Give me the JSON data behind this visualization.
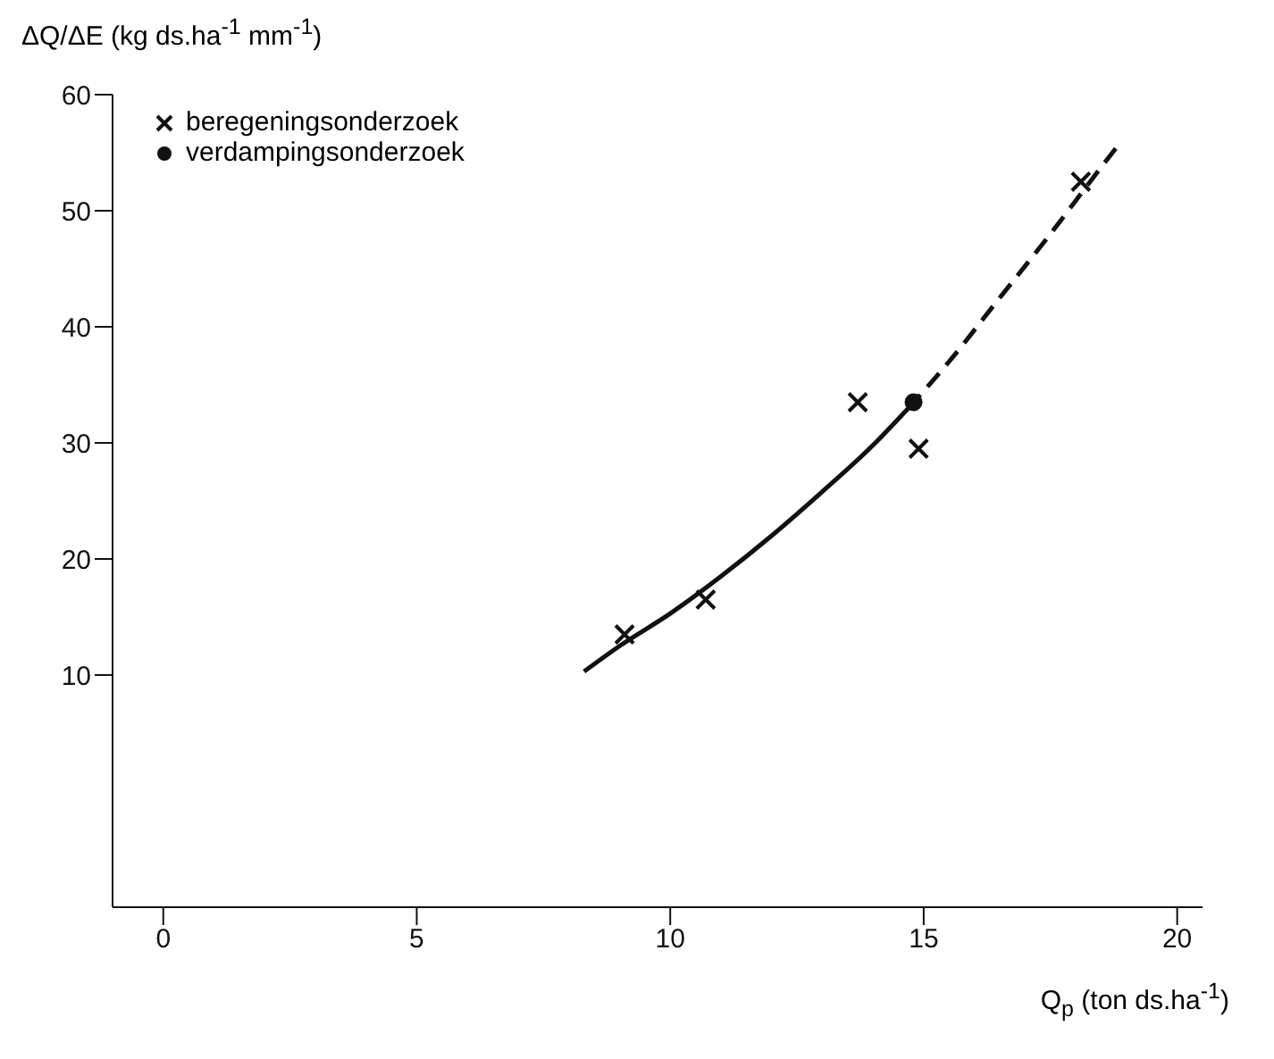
{
  "chart_data": {
    "type": "scatter",
    "xlabel": "Q$_{p}$ (ton ds.ha$^{-1}$)",
    "ylabel": "ΔQ/ΔE (kg ds.ha$^{-1}$ mm$^{-1}$)",
    "xlim": [
      -1,
      20.5
    ],
    "xticks": [
      0,
      5,
      10,
      15,
      20
    ],
    "ylim": [
      -10,
      60
    ],
    "yticks": [
      10,
      20,
      30,
      40,
      50,
      60
    ],
    "grid": false,
    "legend": "top left",
    "series": [
      {
        "name": "beregeningsonderzoek",
        "marker": "cross",
        "color": "#111111",
        "x": [
          9.1,
          10.7,
          13.7,
          14.9,
          18.1
        ],
        "values": [
          13.5,
          16.5,
          33.5,
          29.5,
          52.5
        ]
      },
      {
        "name": "verdampingsonderzoek",
        "marker": "circle",
        "color": "#111111",
        "x": [
          14.8
        ],
        "values": [
          33.5
        ]
      },
      {
        "type": "line",
        "line_style": "solid",
        "marker": "none",
        "color": "#111111",
        "x": [
          8.3,
          9,
          10,
          11,
          12,
          13,
          14,
          14.7
        ],
        "values": [
          10.3,
          12.5,
          15.3,
          18.5,
          22,
          25.8,
          29.8,
          33
        ]
      },
      {
        "type": "line",
        "line_style": "dashed",
        "marker": "none",
        "color": "#111111",
        "x": [
          14.7,
          15.5,
          16.5,
          17.5,
          18.3,
          18.9
        ],
        "values": [
          33,
          37,
          42.5,
          48,
          52.6,
          56
        ]
      }
    ]
  }
}
